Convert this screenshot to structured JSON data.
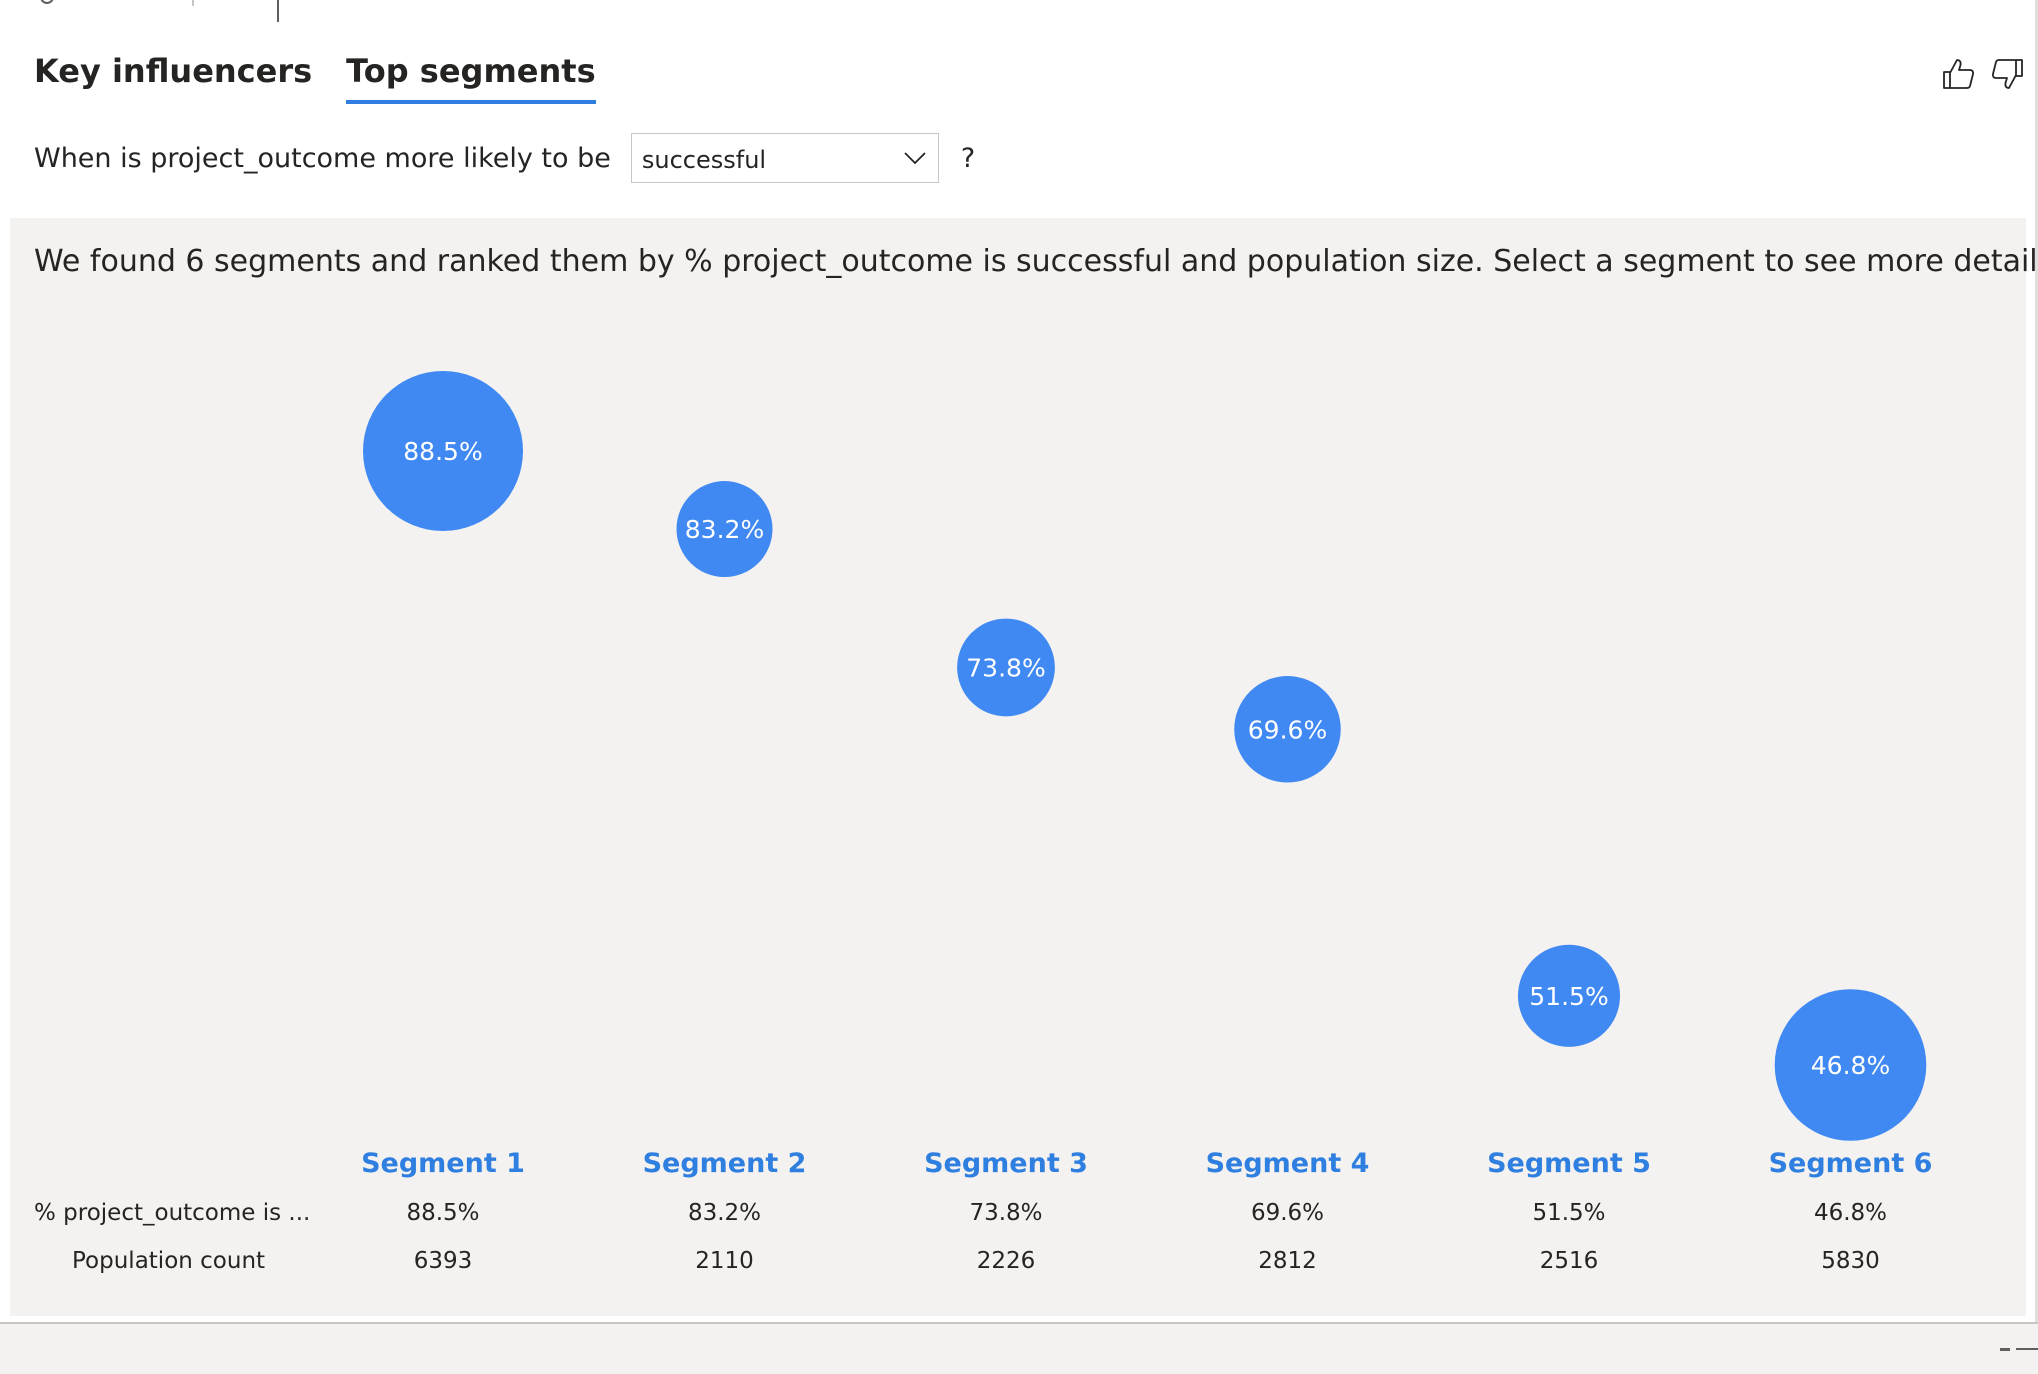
{
  "tabs": [
    {
      "label": "Key influencers",
      "active": false
    },
    {
      "label": "Top segments",
      "active": true
    }
  ],
  "question": {
    "prefix": "When is project_outcome more likely to be",
    "selected": "successful",
    "suffix": "?"
  },
  "summary": "We found 6 segments and ranked them by % project_outcome is successful and population size. Select a segment to see more details.",
  "table": {
    "row_labels": {
      "percent": "% project_outcome is ...",
      "population": "Population count"
    }
  },
  "chart_data": {
    "type": "scatter",
    "series": [
      {
        "values": [
          88.5,
          83.2,
          73.8,
          69.6,
          51.5,
          46.8
        ],
        "sizes": [
          6393,
          2110,
          2226,
          2812,
          2516,
          5830
        ]
      }
    ],
    "categories": [
      "Segment 1",
      "Segment 2",
      "Segment 3",
      "Segment 4",
      "Segment 5",
      "Segment 6"
    ],
    "percent_labels": [
      "88.5%",
      "83.2%",
      "73.8%",
      "69.6%",
      "51.5%",
      "46.8%"
    ],
    "population_labels": [
      "6393",
      "2110",
      "2226",
      "2812",
      "2516",
      "5830"
    ],
    "ylim": [
      46.8,
      88.5
    ],
    "grid": false,
    "color": "#4089f2"
  },
  "colors": {
    "accent": "#2f7fe0",
    "bubble": "#4089f2",
    "panel": "#f3f2f1"
  }
}
